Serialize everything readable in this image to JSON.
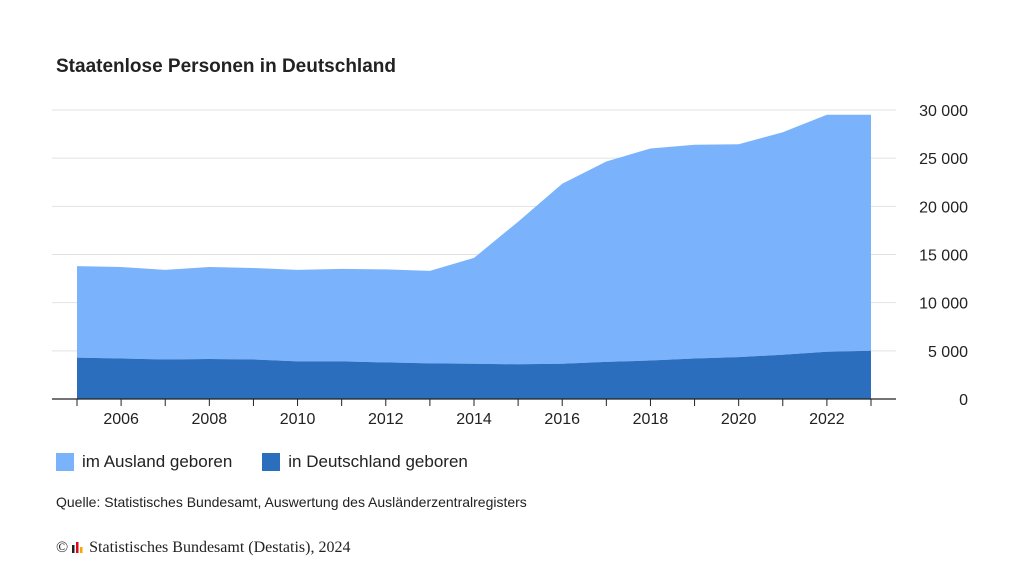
{
  "chart_data": {
    "type": "area",
    "title": "Staatenlose Personen in Deutschland",
    "x": [
      2005,
      2006,
      2007,
      2008,
      2009,
      2010,
      2011,
      2012,
      2013,
      2014,
      2015,
      2016,
      2017,
      2018,
      2019,
      2020,
      2021,
      2022,
      2023
    ],
    "x_tick_labels": [
      "2006",
      "2008",
      "2010",
      "2012",
      "2014",
      "2016",
      "2018",
      "2020",
      "2022"
    ],
    "y_tick_labels": [
      "0",
      "5 000",
      "10 000",
      "15 000",
      "20 000",
      "25 000",
      "30 000"
    ],
    "ylim": [
      0,
      30000
    ],
    "stacked": true,
    "grid": true,
    "y_axis_position": "right",
    "legend_position": "bottom-left",
    "series": [
      {
        "name": "in Deutschland geboren",
        "color": "#2a6ebd",
        "values": [
          4300,
          4200,
          4100,
          4150,
          4100,
          3900,
          3900,
          3800,
          3700,
          3650,
          3600,
          3650,
          3850,
          4000,
          4200,
          4350,
          4600,
          4900,
          5000
        ]
      },
      {
        "name": "im Ausland geboren",
        "color": "#7ab3fb",
        "values": [
          9500,
          9500,
          9300,
          9550,
          9500,
          9500,
          9600,
          9650,
          9600,
          11000,
          14800,
          18700,
          20800,
          22000,
          22200,
          22100,
          23100,
          24600,
          24500
        ]
      }
    ]
  },
  "legend": {
    "items": [
      {
        "label": "im Ausland geboren",
        "color": "#7ab3fb"
      },
      {
        "label": "in Deutschland geboren",
        "color": "#2a6ebd"
      }
    ]
  },
  "source": "Quelle: Statistisches Bundesamt, Auswertung des Ausländerzentralregisters",
  "copyright": {
    "symbol": "©",
    "text": "Statistisches Bundesamt (Destatis), 2024"
  }
}
